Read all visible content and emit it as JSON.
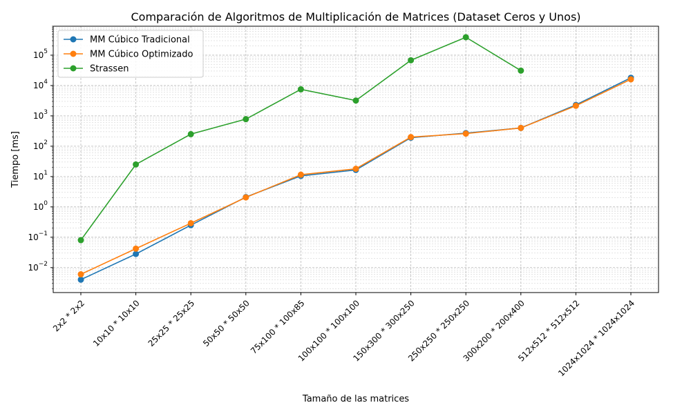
{
  "chart_data": {
    "type": "line",
    "title": "Comparación de Algoritmos de Multiplicación de Matrices (Dataset Ceros y Unos)",
    "xlabel": "Tamaño de las matrices",
    "ylabel": "Tiempo [ms]",
    "yscale": "log",
    "ylim": [
      0.0015,
      900000
    ],
    "grid": true,
    "legend_position": "top-left",
    "categories": [
      "2x2 * 2x2",
      "10x10 * 10x10",
      "25x25 * 25x25",
      "50x50 * 50x50",
      "75x100 * 100x85",
      "100x100 * 100x100",
      "150x300 * 300x250",
      "250x250 * 250x250",
      "300x200 * 200x400",
      "512x512 * 512x512",
      "1024x1024 * 1024x1024"
    ],
    "y_ticks": [
      {
        "base": "10",
        "exp": "−2",
        "value": 0.01
      },
      {
        "base": "10",
        "exp": "−1",
        "value": 0.1
      },
      {
        "base": "10",
        "exp": "0",
        "value": 1
      },
      {
        "base": "10",
        "exp": "1",
        "value": 10
      },
      {
        "base": "10",
        "exp": "2",
        "value": 100
      },
      {
        "base": "10",
        "exp": "3",
        "value": 1000
      },
      {
        "base": "10",
        "exp": "4",
        "value": 10000
      },
      {
        "base": "10",
        "exp": "5",
        "value": 100000
      }
    ],
    "series": [
      {
        "name": "MM Cúbico Tradicional",
        "color": "#1f77b4",
        "values": [
          0.004,
          0.028,
          0.25,
          2.1,
          10.5,
          16.5,
          190,
          270,
          400,
          2300,
          18000
        ]
      },
      {
        "name": "MM Cúbico Optimizado",
        "color": "#ff7f0e",
        "values": [
          0.006,
          0.042,
          0.29,
          2.05,
          11.5,
          18,
          200,
          260,
          400,
          2150,
          16000
        ]
      },
      {
        "name": "Strassen",
        "color": "#2ca02c",
        "values": [
          0.08,
          25,
          250,
          780,
          7500,
          3200,
          68000,
          390000,
          31000,
          null,
          null
        ]
      }
    ]
  }
}
